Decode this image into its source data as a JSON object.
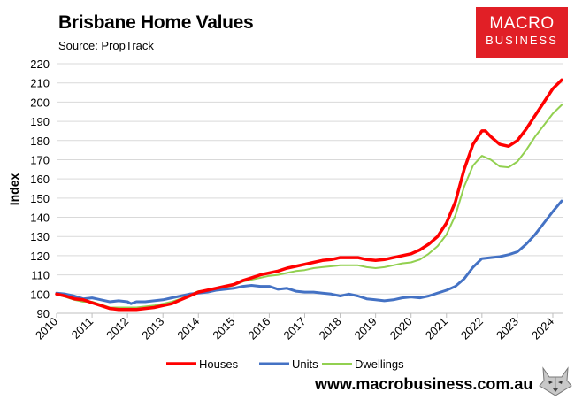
{
  "header": {
    "title": "Brisbane Home Values",
    "subtitle": "Source: PropTrack"
  },
  "logo": {
    "line1": "MACRO",
    "line2": "BUSINESS",
    "color": "#e11f26"
  },
  "footer": {
    "url": "www.macrobusiness.com.au"
  },
  "chart_data": {
    "type": "line",
    "title": "Brisbane Home Values",
    "xlabel": "",
    "ylabel": "Index",
    "xlim": [
      2010,
      2024.3
    ],
    "ylim": [
      90,
      220
    ],
    "yticks": [
      90,
      100,
      110,
      120,
      130,
      140,
      150,
      160,
      170,
      180,
      190,
      200,
      210,
      220
    ],
    "xticks": [
      "2010",
      "2011",
      "2012",
      "2013",
      "2014",
      "2015",
      "2016",
      "2017",
      "2018",
      "2019",
      "2020",
      "2021",
      "2022",
      "2023",
      "2024"
    ],
    "grid": "horizontal",
    "legend": "bottom",
    "series": [
      {
        "name": "Houses",
        "color": "#ff0000",
        "points": [
          [
            2010,
            100
          ],
          [
            2010.25,
            99
          ],
          [
            2010.5,
            97.5
          ],
          [
            2010.75,
            97
          ],
          [
            2011,
            95.5
          ],
          [
            2011.25,
            94
          ],
          [
            2011.5,
            92.5
          ],
          [
            2011.75,
            92
          ],
          [
            2012,
            92
          ],
          [
            2012.25,
            92
          ],
          [
            2012.5,
            92.5
          ],
          [
            2012.75,
            93
          ],
          [
            2013,
            94
          ],
          [
            2013.25,
            95
          ],
          [
            2013.5,
            97
          ],
          [
            2013.75,
            99
          ],
          [
            2014,
            101
          ],
          [
            2014.25,
            102
          ],
          [
            2014.5,
            103
          ],
          [
            2014.75,
            104
          ],
          [
            2015,
            105
          ],
          [
            2015.25,
            107
          ],
          [
            2015.5,
            108.5
          ],
          [
            2015.75,
            110
          ],
          [
            2016,
            111
          ],
          [
            2016.25,
            112
          ],
          [
            2016.5,
            113.5
          ],
          [
            2016.75,
            114.5
          ],
          [
            2017,
            115.5
          ],
          [
            2017.25,
            116.5
          ],
          [
            2017.5,
            117.5
          ],
          [
            2017.75,
            118
          ],
          [
            2018,
            119
          ],
          [
            2018.25,
            119
          ],
          [
            2018.5,
            119
          ],
          [
            2018.75,
            118
          ],
          [
            2019,
            117.5
          ],
          [
            2019.25,
            118
          ],
          [
            2019.5,
            119
          ],
          [
            2019.75,
            120
          ],
          [
            2020,
            121
          ],
          [
            2020.25,
            123
          ],
          [
            2020.5,
            126
          ],
          [
            2020.75,
            130
          ],
          [
            2021,
            137
          ],
          [
            2021.25,
            148
          ],
          [
            2021.5,
            165
          ],
          [
            2021.75,
            178
          ],
          [
            2022,
            185
          ],
          [
            2022.1,
            185
          ],
          [
            2022.25,
            182
          ],
          [
            2022.5,
            178
          ],
          [
            2022.75,
            177
          ],
          [
            2023,
            180
          ],
          [
            2023.25,
            186
          ],
          [
            2023.5,
            193
          ],
          [
            2023.75,
            200
          ],
          [
            2024,
            207
          ],
          [
            2024.25,
            211.5
          ]
        ]
      },
      {
        "name": "Units",
        "color": "#4472c4",
        "points": [
          [
            2010,
            100.5
          ],
          [
            2010.25,
            100
          ],
          [
            2010.5,
            99
          ],
          [
            2010.75,
            97.5
          ],
          [
            2011,
            98
          ],
          [
            2011.25,
            97
          ],
          [
            2011.5,
            96
          ],
          [
            2011.75,
            96.5
          ],
          [
            2012,
            96
          ],
          [
            2012.1,
            95
          ],
          [
            2012.25,
            96
          ],
          [
            2012.5,
            96
          ],
          [
            2012.75,
            96.5
          ],
          [
            2013,
            97
          ],
          [
            2013.25,
            98
          ],
          [
            2013.5,
            99
          ],
          [
            2013.75,
            100
          ],
          [
            2014,
            100.5
          ],
          [
            2014.25,
            101
          ],
          [
            2014.5,
            102
          ],
          [
            2014.75,
            102.5
          ],
          [
            2015,
            103
          ],
          [
            2015.25,
            104
          ],
          [
            2015.5,
            104.5
          ],
          [
            2015.75,
            104
          ],
          [
            2016,
            104
          ],
          [
            2016.25,
            102.5
          ],
          [
            2016.5,
            103
          ],
          [
            2016.75,
            101.5
          ],
          [
            2017,
            101
          ],
          [
            2017.25,
            101
          ],
          [
            2017.5,
            100.5
          ],
          [
            2017.75,
            100
          ],
          [
            2018,
            99
          ],
          [
            2018.25,
            100
          ],
          [
            2018.5,
            99
          ],
          [
            2018.75,
            97.5
          ],
          [
            2019,
            97
          ],
          [
            2019.25,
            96.5
          ],
          [
            2019.5,
            97
          ],
          [
            2019.75,
            98
          ],
          [
            2020,
            98.5
          ],
          [
            2020.25,
            98
          ],
          [
            2020.5,
            99
          ],
          [
            2020.75,
            100.5
          ],
          [
            2021,
            102
          ],
          [
            2021.25,
            104
          ],
          [
            2021.5,
            108
          ],
          [
            2021.75,
            114
          ],
          [
            2022,
            118.5
          ],
          [
            2022.25,
            119
          ],
          [
            2022.5,
            119.5
          ],
          [
            2022.75,
            120.5
          ],
          [
            2023,
            122
          ],
          [
            2023.25,
            126
          ],
          [
            2023.5,
            131
          ],
          [
            2023.75,
            137
          ],
          [
            2024,
            143
          ],
          [
            2024.25,
            148.5
          ]
        ]
      },
      {
        "name": "Dwellings",
        "color": "#92d050",
        "points": [
          [
            2010,
            100
          ],
          [
            2010.25,
            98.5
          ],
          [
            2010.5,
            97
          ],
          [
            2010.75,
            96
          ],
          [
            2011,
            96
          ],
          [
            2011.25,
            94.5
          ],
          [
            2011.5,
            93
          ],
          [
            2011.75,
            93
          ],
          [
            2012,
            93
          ],
          [
            2012.25,
            93
          ],
          [
            2012.5,
            93.5
          ],
          [
            2012.75,
            94
          ],
          [
            2013,
            95
          ],
          [
            2013.25,
            96
          ],
          [
            2013.5,
            97.5
          ],
          [
            2013.75,
            99.5
          ],
          [
            2014,
            101.5
          ],
          [
            2014.25,
            102
          ],
          [
            2014.5,
            103
          ],
          [
            2014.75,
            103.5
          ],
          [
            2015,
            104.5
          ],
          [
            2015.25,
            106.5
          ],
          [
            2015.5,
            107.5
          ],
          [
            2015.75,
            108.5
          ],
          [
            2016,
            109.5
          ],
          [
            2016.25,
            110
          ],
          [
            2016.5,
            111
          ],
          [
            2016.75,
            112
          ],
          [
            2017,
            112.5
          ],
          [
            2017.25,
            113.5
          ],
          [
            2017.5,
            114
          ],
          [
            2017.75,
            114.5
          ],
          [
            2018,
            115
          ],
          [
            2018.25,
            115
          ],
          [
            2018.5,
            115
          ],
          [
            2018.75,
            114
          ],
          [
            2019,
            113.5
          ],
          [
            2019.25,
            114
          ],
          [
            2019.5,
            115
          ],
          [
            2019.75,
            116
          ],
          [
            2020,
            116.5
          ],
          [
            2020.25,
            118
          ],
          [
            2020.5,
            121
          ],
          [
            2020.75,
            125
          ],
          [
            2021,
            131
          ],
          [
            2021.25,
            141
          ],
          [
            2021.5,
            156
          ],
          [
            2021.75,
            167
          ],
          [
            2022,
            172
          ],
          [
            2022.25,
            170
          ],
          [
            2022.5,
            166.5
          ],
          [
            2022.75,
            166
          ],
          [
            2023,
            169
          ],
          [
            2023.25,
            175
          ],
          [
            2023.5,
            182
          ],
          [
            2023.75,
            188
          ],
          [
            2024,
            194
          ],
          [
            2024.25,
            198.5
          ]
        ]
      }
    ]
  }
}
